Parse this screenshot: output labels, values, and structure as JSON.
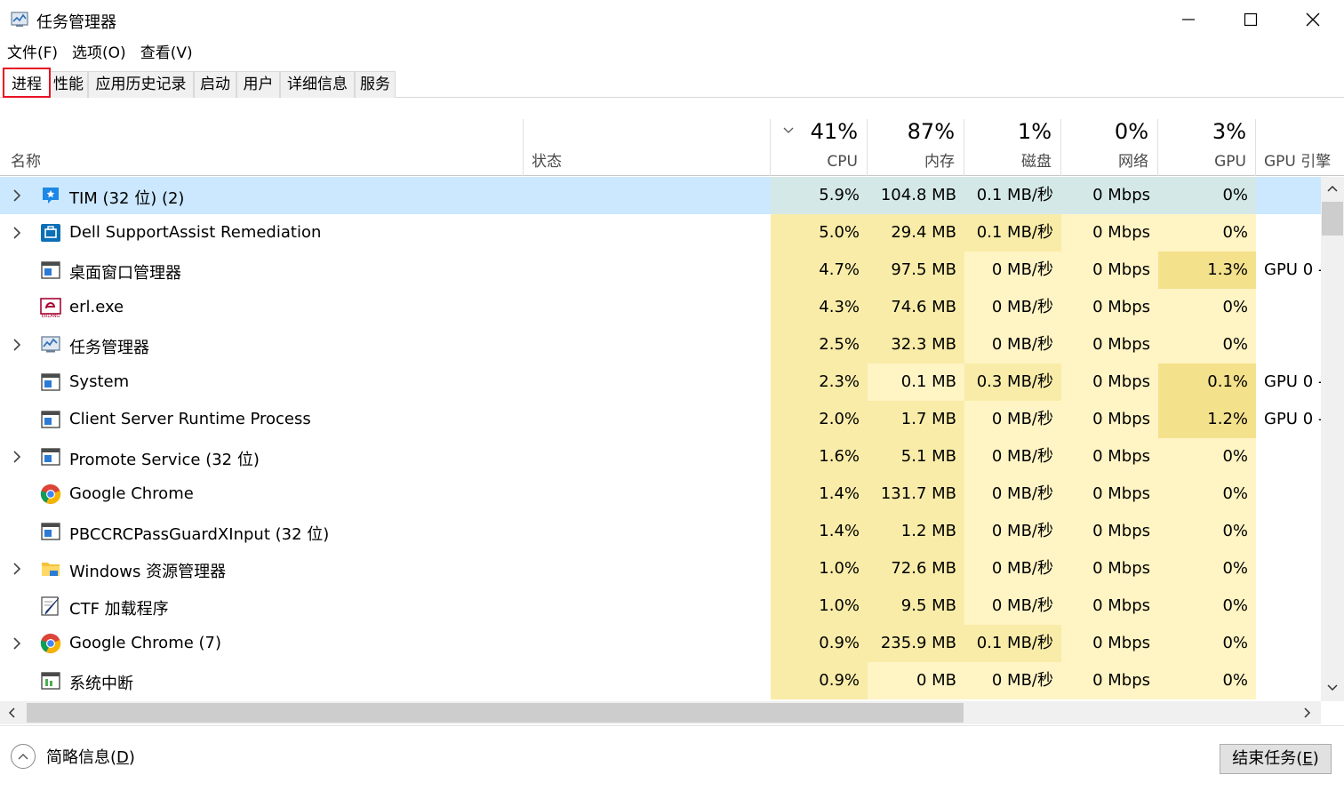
{
  "window": {
    "title": "任务管理器"
  },
  "menu": [
    {
      "label": "文件(F)"
    },
    {
      "label": "选项(O)"
    },
    {
      "label": "查看(V)"
    }
  ],
  "tabs": [
    {
      "label": "进程",
      "active": true
    },
    {
      "label": "性能"
    },
    {
      "label": "应用历史记录"
    },
    {
      "label": "启动"
    },
    {
      "label": "用户"
    },
    {
      "label": "详细信息"
    },
    {
      "label": "服务"
    }
  ],
  "columns": {
    "name": "名称",
    "status": "状态",
    "cpu": {
      "pct": "41%",
      "label": "CPU"
    },
    "memory": {
      "pct": "87%",
      "label": "内存"
    },
    "disk": {
      "pct": "1%",
      "label": "磁盘"
    },
    "network": {
      "pct": "0%",
      "label": "网络"
    },
    "gpu": {
      "pct": "3%",
      "label": "GPU"
    },
    "gpu_engine": "GPU 引擎"
  },
  "processes": [
    {
      "name": "TIM (32 位) (2)",
      "expandable": true,
      "icon": "tim-icon",
      "cpu": "5.9%",
      "mem": "104.8 MB",
      "disk": "0.1 MB/秒",
      "net": "0 Mbps",
      "gpu": "0%",
      "gpu_engine": "",
      "selected": true
    },
    {
      "name": "Dell SupportAssist Remediation",
      "expandable": true,
      "icon": "dell-support-icon",
      "cpu": "5.0%",
      "mem": "29.4 MB",
      "disk": "0.1 MB/秒",
      "net": "0 Mbps",
      "gpu": "0%",
      "gpu_engine": ""
    },
    {
      "name": "桌面窗口管理器",
      "expandable": false,
      "icon": "window-process-icon",
      "cpu": "4.7%",
      "mem": "97.5 MB",
      "disk": "0 MB/秒",
      "net": "0 Mbps",
      "gpu": "1.3%",
      "gpu_engine": "GPU 0 -"
    },
    {
      "name": "erl.exe",
      "expandable": false,
      "icon": "erlang-icon",
      "cpu": "4.3%",
      "mem": "74.6 MB",
      "disk": "0 MB/秒",
      "net": "0 Mbps",
      "gpu": "0%",
      "gpu_engine": ""
    },
    {
      "name": "任务管理器",
      "expandable": true,
      "icon": "task-manager-icon",
      "cpu": "2.5%",
      "mem": "32.3 MB",
      "disk": "0 MB/秒",
      "net": "0 Mbps",
      "gpu": "0%",
      "gpu_engine": ""
    },
    {
      "name": "System",
      "expandable": false,
      "icon": "window-process-icon",
      "cpu": "2.3%",
      "mem": "0.1 MB",
      "disk": "0.3 MB/秒",
      "net": "0 Mbps",
      "gpu": "0.1%",
      "gpu_engine": "GPU 0 -"
    },
    {
      "name": "Client Server Runtime Process",
      "expandable": false,
      "icon": "window-process-icon",
      "cpu": "2.0%",
      "mem": "1.7 MB",
      "disk": "0 MB/秒",
      "net": "0 Mbps",
      "gpu": "1.2%",
      "gpu_engine": "GPU 0 -"
    },
    {
      "name": "Promote Service (32 位)",
      "expandable": true,
      "icon": "window-process-icon",
      "cpu": "1.6%",
      "mem": "5.1 MB",
      "disk": "0 MB/秒",
      "net": "0 Mbps",
      "gpu": "0%",
      "gpu_engine": ""
    },
    {
      "name": "Google Chrome",
      "expandable": false,
      "icon": "chrome-icon",
      "cpu": "1.4%",
      "mem": "131.7 MB",
      "disk": "0 MB/秒",
      "net": "0 Mbps",
      "gpu": "0%",
      "gpu_engine": ""
    },
    {
      "name": "PBCCRCPassGuardXInput (32 位)",
      "expandable": false,
      "icon": "window-process-icon",
      "cpu": "1.4%",
      "mem": "1.2 MB",
      "disk": "0 MB/秒",
      "net": "0 Mbps",
      "gpu": "0%",
      "gpu_engine": ""
    },
    {
      "name": "Windows 资源管理器",
      "expandable": true,
      "icon": "folder-icon",
      "cpu": "1.0%",
      "mem": "72.6 MB",
      "disk": "0 MB/秒",
      "net": "0 Mbps",
      "gpu": "0%",
      "gpu_engine": ""
    },
    {
      "name": "CTF 加载程序",
      "expandable": false,
      "icon": "ctf-pen-icon",
      "cpu": "1.0%",
      "mem": "9.5 MB",
      "disk": "0 MB/秒",
      "net": "0 Mbps",
      "gpu": "0%",
      "gpu_engine": ""
    },
    {
      "name": "Google Chrome (7)",
      "expandable": true,
      "icon": "chrome-icon",
      "cpu": "0.9%",
      "mem": "235.9 MB",
      "disk": "0.1 MB/秒",
      "net": "0 Mbps",
      "gpu": "0%",
      "gpu_engine": ""
    },
    {
      "name": "系统中断",
      "expandable": false,
      "icon": "interrupt-icon",
      "cpu": "0.9%",
      "mem": "0 MB",
      "disk": "0 MB/秒",
      "net": "0 Mbps",
      "gpu": "0%",
      "gpu_engine": ""
    }
  ],
  "footer": {
    "fewer_details": "简略信息(",
    "fewer_details_key": "D",
    "fewer_details_end": ")",
    "end_task": "结束任务(",
    "end_task_key": "E",
    "end_task_end": ")"
  },
  "colors": {
    "heat_light": "#fff4c4",
    "heat_mid": "#f9eca8",
    "heat_strong": "#f4e18c",
    "selected_row": "#cce8ff",
    "selected_heat": "#d5e8e8",
    "active_tab_highlight": "#e81123"
  }
}
